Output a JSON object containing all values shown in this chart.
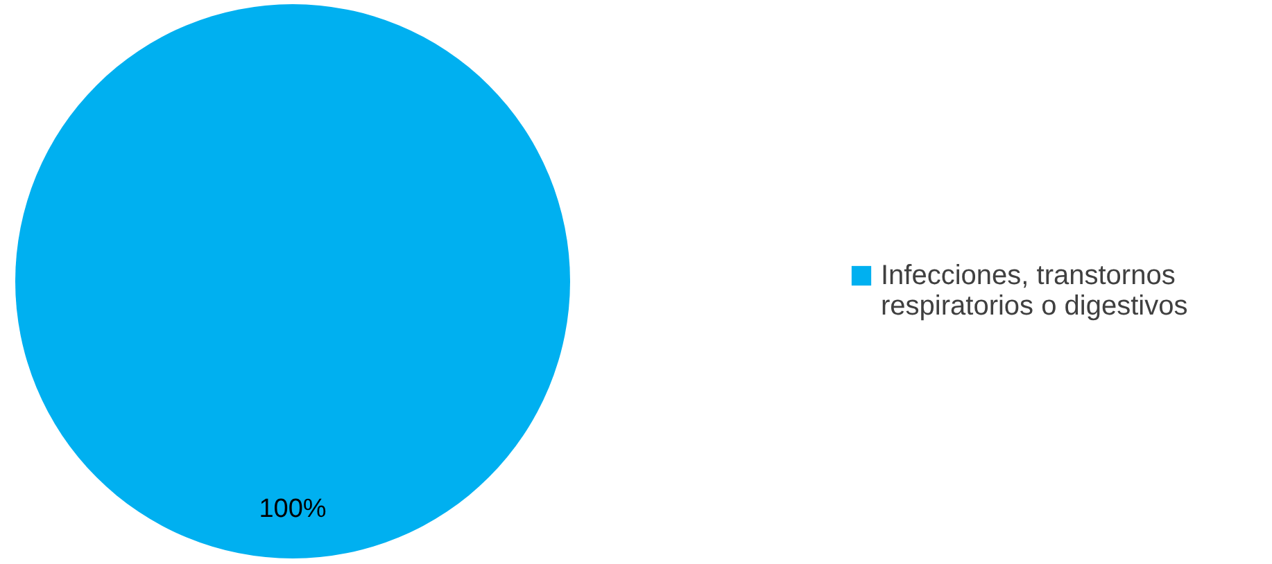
{
  "chart_data": {
    "type": "pie",
    "categories": [
      "Infecciones, transtornos respiratorios o digestivos"
    ],
    "values": [
      100
    ],
    "colors": [
      "#00b0f0"
    ],
    "value_labels": [
      "100%"
    ],
    "legend": "right"
  }
}
